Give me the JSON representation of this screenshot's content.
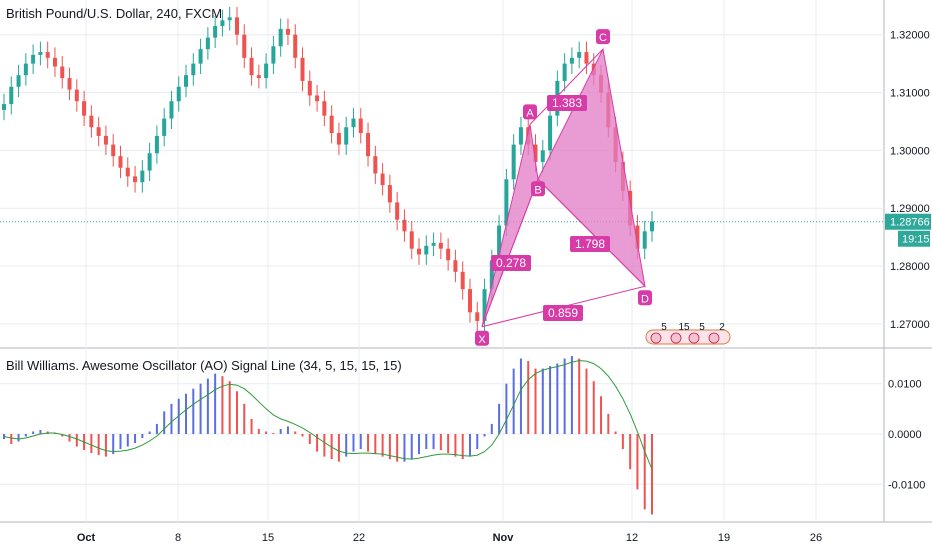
{
  "header": {
    "title": "British Pound/U.S. Dollar, 240, FXCM"
  },
  "indicator": {
    "title": "Bill Williams. Awesome Oscillator (AO) Signal Line (34, 5, 15, 15, 15)"
  },
  "colors": {
    "up": "#26a69a",
    "down": "#ef5350",
    "pattern": "#d63ba8",
    "pattern_fill": "#e27bc4",
    "ao_up": "#5b6ee1",
    "ao_down": "#ef5350",
    "signal": "#2e9b3a",
    "price_line": "#2ea89a",
    "axis_text": "#131722",
    "grid": "#e9ecf1"
  },
  "chart_data": [
    {
      "type": "candlestick",
      "title": "British Pound/U.S. Dollar, 240, FXCM",
      "xlabel": "",
      "ylabel": "",
      "x_ticks": [
        "Oct",
        "8",
        "15",
        "22",
        "Nov",
        "12",
        "19",
        "26"
      ],
      "y_ticks": [
        "1.27000",
        "1.28000",
        "1.29000",
        "1.30000",
        "1.31000",
        "1.32000"
      ],
      "ylim": [
        1.266,
        1.326
      ],
      "current_price": {
        "value": 1.28766,
        "label": "1.28766",
        "countdown": "19:15"
      },
      "closes": [
        1.308,
        1.311,
        1.313,
        1.315,
        1.3165,
        1.317,
        1.316,
        1.3145,
        1.3125,
        1.3105,
        1.3085,
        1.306,
        1.304,
        1.3025,
        1.301,
        1.299,
        1.297,
        1.2955,
        1.2945,
        1.2965,
        1.2995,
        1.3025,
        1.3055,
        1.3085,
        1.311,
        1.313,
        1.315,
        1.3175,
        1.3195,
        1.3215,
        1.3225,
        1.323,
        1.32,
        1.316,
        1.313,
        1.3125,
        1.315,
        1.318,
        1.321,
        1.32,
        1.316,
        1.312,
        1.3095,
        1.3085,
        1.306,
        1.303,
        1.301,
        1.304,
        1.3055,
        1.303,
        1.299,
        1.296,
        1.294,
        1.291,
        1.288,
        1.286,
        1.283,
        1.282,
        1.2835,
        1.284,
        1.283,
        1.281,
        1.279,
        1.276,
        1.272,
        1.2705,
        1.276,
        1.281,
        1.287,
        1.295,
        1.301,
        1.304,
        1.301,
        1.298,
        1.3,
        1.306,
        1.312,
        1.315,
        1.316,
        1.317,
        1.315,
        1.313,
        1.31,
        1.304,
        1.298,
        1.293,
        1.287,
        1.283,
        1.286,
        1.2877
      ]
    },
    {
      "type": "harmonic_pattern",
      "points": [
        {
          "name": "X",
          "x": "2018-10-30",
          "y": 1.2695
        },
        {
          "name": "A",
          "x": "2018-11-02",
          "y": 1.3045
        },
        {
          "name": "B",
          "x": "2018-11-03",
          "y": 1.295
        },
        {
          "name": "C",
          "x": "2018-11-09",
          "y": 1.3175
        },
        {
          "name": "D",
          "x": "2018-11-13",
          "y": 1.2765
        }
      ],
      "ratios": [
        {
          "label": "0.278",
          "between": "XB"
        },
        {
          "label": "1.383",
          "between": "AC"
        },
        {
          "label": "1.798",
          "between": "BD"
        },
        {
          "label": "0.859",
          "between": "XD"
        }
      ],
      "event_labels": [
        "5",
        "15",
        "5",
        "2"
      ]
    },
    {
      "type": "bar",
      "title": "Bill Williams. Awesome Oscillator (AO) Signal Line (34, 5, 15, 15, 15)",
      "y_ticks": [
        "-0.0100",
        "0.0000",
        "0.0100"
      ],
      "ylim": [
        -0.0175,
        0.0165
      ],
      "ao": [
        -0.001,
        -0.002,
        -0.0015,
        -0.0005,
        0.0005,
        0.0008,
        0.0005,
        0.0002,
        -0.0005,
        -0.0015,
        -0.0025,
        -0.0032,
        -0.0038,
        -0.0042,
        -0.0045,
        -0.004,
        -0.003,
        -0.0025,
        -0.0018,
        -0.0008,
        0.0005,
        0.002,
        0.0045,
        0.006,
        0.007,
        0.008,
        0.009,
        0.01,
        0.011,
        0.012,
        0.0115,
        0.0105,
        0.0085,
        0.006,
        0.003,
        0.001,
        0.0005,
        0.0002,
        0.001,
        0.0015,
        0.0005,
        -0.0005,
        -0.002,
        -0.0035,
        -0.0045,
        -0.005,
        -0.0055,
        -0.0045,
        -0.0035,
        -0.003,
        -0.0035,
        -0.004,
        -0.0045,
        -0.005,
        -0.0055,
        -0.0055,
        -0.005,
        -0.004,
        -0.003,
        -0.003,
        -0.0032,
        -0.0038,
        -0.0045,
        -0.005,
        -0.0045,
        -0.003,
        -0.0005,
        0.002,
        0.006,
        0.01,
        0.013,
        0.015,
        0.0145,
        0.013,
        0.013,
        0.0135,
        0.014,
        0.015,
        0.0155,
        0.015,
        0.013,
        0.0105,
        0.0075,
        0.004,
        0.0005,
        -0.003,
        -0.007,
        -0.011,
        -0.015,
        -0.016
      ],
      "signal": [
        -0.0005,
        -0.0008,
        -0.001,
        -0.0008,
        -0.0004,
        0.0,
        0.0002,
        0.0002,
        -0.0001,
        -0.0005,
        -0.001,
        -0.0016,
        -0.0022,
        -0.0028,
        -0.0033,
        -0.0035,
        -0.0034,
        -0.0032,
        -0.0028,
        -0.0022,
        -0.0014,
        -0.0004,
        0.001,
        0.0024,
        0.0036,
        0.0048,
        0.0059,
        0.0069,
        0.0078,
        0.0088,
        0.0095,
        0.0099,
        0.0097,
        0.009,
        0.0078,
        0.0064,
        0.005,
        0.0038,
        0.003,
        0.0025,
        0.0019,
        0.0012,
        0.0003,
        -0.0007,
        -0.0017,
        -0.0026,
        -0.0034,
        -0.0038,
        -0.0039,
        -0.0038,
        -0.0038,
        -0.0039,
        -0.004,
        -0.0043,
        -0.0046,
        -0.0049,
        -0.005,
        -0.0048,
        -0.0045,
        -0.0042,
        -0.004,
        -0.004,
        -0.0041,
        -0.0043,
        -0.0044,
        -0.0042,
        -0.0035,
        -0.0022,
        0.0,
        0.0028,
        0.0058,
        0.0088,
        0.0108,
        0.012,
        0.0127,
        0.0131,
        0.0134,
        0.0138,
        0.0143,
        0.0146,
        0.0145,
        0.014,
        0.013,
        0.0115,
        0.0095,
        0.007,
        0.004,
        0.0005,
        -0.0035,
        -0.007
      ]
    }
  ]
}
